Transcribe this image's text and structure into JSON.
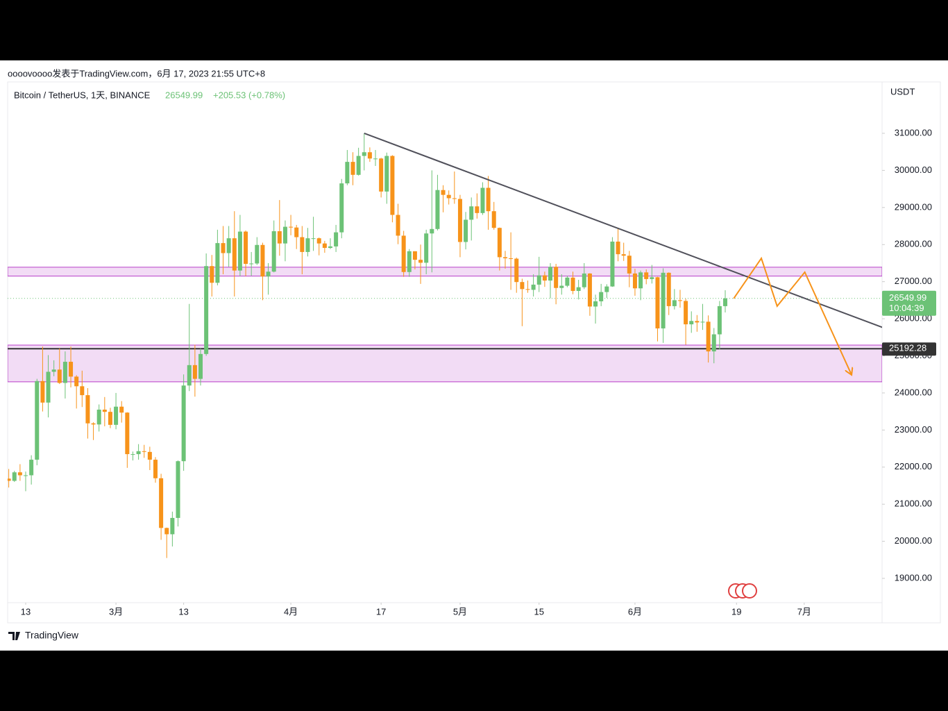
{
  "header": {
    "byline": "oooovoooo发表于TradingView.com，6月 17, 2023 21:55 UTC+8",
    "footer": "TradingView"
  },
  "chart_data": {
    "type": "candlestick",
    "title": "Bitcoin / TetherUS, 1天, BINANCE",
    "change": "+205.53 (+0.78%)",
    "y_axis_label": "USDT",
    "countdown": "10:04:39",
    "up_color": "#6cc276",
    "down_color": "#f7931a",
    "x": [
      -3,
      -2,
      -1,
      0,
      1,
      2,
      3,
      4,
      5,
      6,
      7,
      8,
      9,
      10,
      11,
      12,
      13,
      14,
      15,
      16,
      17,
      18,
      19,
      20,
      21,
      22,
      23,
      24,
      25,
      26,
      27,
      28,
      29,
      30,
      31,
      32,
      33,
      34,
      35,
      36,
      37,
      38,
      39,
      40,
      41,
      42,
      43,
      44,
      45,
      46,
      47,
      48,
      49,
      50,
      51,
      52,
      53,
      54,
      55,
      56,
      57,
      58,
      59,
      60,
      61,
      62,
      63,
      64,
      65,
      66,
      67,
      68,
      69,
      70,
      71,
      72,
      73,
      74,
      75,
      76,
      77,
      78,
      79,
      80,
      81,
      82,
      83,
      84,
      85,
      86,
      87,
      88,
      89,
      90,
      91,
      92,
      93,
      94,
      95,
      96,
      97,
      98,
      99,
      100,
      101,
      102,
      103,
      104,
      105,
      106,
      107,
      108,
      109,
      110,
      111,
      112,
      113,
      114,
      115,
      116,
      117,
      118,
      119,
      120,
      121,
      122,
      123,
      124
    ],
    "open": [
      21690,
      21630,
      21860,
      21780,
      21780,
      22200,
      24320,
      23740,
      24570,
      24630,
      24270,
      24840,
      24440,
      24180,
      23940,
      23180,
      23150,
      23550,
      23490,
      23140,
      23630,
      23470,
      22350,
      22350,
      22430,
      22410,
      22200,
      21700,
      20360,
      20190,
      20630,
      22160,
      24200,
      24750,
      24380,
      25050,
      27420,
      26970,
      28040,
      27770,
      28170,
      27300,
      28350,
      27480,
      27490,
      27990,
      27140,
      27270,
      28360,
      28030,
      28480,
      28460,
      28200,
      27800,
      28170,
      28170,
      28030,
      27910,
      27950,
      28330,
      29650,
      30230,
      29880,
      30390,
      30490,
      30320,
      30320,
      29430,
      30390,
      28800,
      28240,
      27260,
      27820,
      27590,
      27510,
      28300,
      28420,
      29470,
      29340,
      29250,
      29230,
      28070,
      28670,
      29030,
      28850,
      29530,
      28900,
      28450,
      27660,
      27630,
      27620,
      26990,
      26800,
      26780,
      26920,
      27170,
      27030,
      27400,
      26830,
      26890,
      27110,
      26750,
      26850,
      27220,
      26330,
      26470,
      26720,
      26870,
      28080,
      27740,
      27700,
      27220,
      26820,
      27250,
      27070,
      27120,
      25740,
      27240,
      26340,
      26500,
      26480,
      25850,
      25940,
      25900,
      25920,
      25120,
      25580,
      26340
    ],
    "high": [
      21950,
      21900,
      22080,
      21880,
      22320,
      24380,
      25250,
      25020,
      24880,
      25200,
      25120,
      25250,
      24480,
      24600,
      24130,
      23210,
      23690,
      23890,
      23600,
      24000,
      23780,
      23480,
      22420,
      22620,
      22600,
      22550,
      22270,
      21820,
      20370,
      20800,
      22180,
      24500,
      26400,
      25300,
      25200,
      27760,
      27720,
      28400,
      28500,
      28500,
      28900,
      28800,
      28380,
      27800,
      28200,
      28050,
      27500,
      28650,
      29200,
      28650,
      28800,
      28530,
      28500,
      28450,
      28750,
      28190,
      28100,
      28170,
      28530,
      29770,
      30550,
      30490,
      30610,
      31000,
      30620,
      30550,
      30340,
      30480,
      30410,
      29100,
      28370,
      27880,
      27820,
      28000,
      28400,
      30000,
      29880,
      29600,
      29460,
      29970,
      29340,
      28880,
      29270,
      29380,
      29680,
      29850,
      29150,
      28460,
      27830,
      28330,
      27650,
      27080,
      27030,
      27200,
      27670,
      27270,
      27500,
      27480,
      27200,
      27160,
      27270,
      27050,
      27500,
      27230,
      26650,
      26940,
      26930,
      28200,
      28450,
      28050,
      27830,
      27350,
      27300,
      27330,
      27450,
      27130,
      27360,
      27250,
      26800,
      26780,
      26540,
      26200,
      26100,
      26400,
      26090,
      25750,
      26480,
      26770
    ],
    "low": [
      21450,
      21600,
      21630,
      21350,
      21530,
      22050,
      23500,
      23340,
      24450,
      24240,
      23850,
      24150,
      23580,
      23620,
      22770,
      22730,
      22960,
      23100,
      23050,
      23020,
      23200,
      21980,
      22180,
      22200,
      22250,
      21920,
      21580,
      20040,
      19550,
      19860,
      20400,
      21900,
      24050,
      23900,
      24200,
      25000,
      26600,
      26900,
      27200,
      27400,
      26600,
      27150,
      27150,
      27160,
      27450,
      26500,
      26650,
      27250,
      27700,
      27550,
      28250,
      27880,
      27200,
      27680,
      27830,
      27710,
      27780,
      27880,
      27800,
      28170,
      29600,
      29600,
      29860,
      30000,
      30230,
      30120,
      29270,
      29100,
      28600,
      28010,
      27130,
      27130,
      27330,
      26940,
      27200,
      27250,
      28380,
      28870,
      29080,
      29100,
      27660,
      27870,
      28110,
      28700,
      28800,
      28400,
      28400,
      27300,
      27350,
      26780,
      26700,
      25800,
      26700,
      26600,
      26720,
      26860,
      26550,
      26390,
      26650,
      26850,
      26660,
      26520,
      26800,
      26080,
      25870,
      26340,
      26560,
      26860,
      27550,
      27560,
      26850,
      26620,
      26500,
      26930,
      26950,
      25390,
      25350,
      26100,
      26250,
      26300,
      25300,
      25620,
      25650,
      25700,
      24820,
      24800,
      25170,
      26170
    ],
    "close": [
      21630,
      21860,
      21780,
      21780,
      22200,
      24320,
      23740,
      24570,
      24630,
      24270,
      24840,
      24440,
      24180,
      23940,
      23180,
      23150,
      23550,
      23490,
      23140,
      23630,
      23470,
      22350,
      22350,
      22430,
      22410,
      22200,
      21700,
      20360,
      20190,
      20630,
      22160,
      24200,
      24750,
      24380,
      25050,
      27420,
      26970,
      28040,
      27770,
      28170,
      27300,
      28350,
      27480,
      27490,
      27990,
      27140,
      27270,
      28360,
      28030,
      28480,
      28460,
      28200,
      27800,
      28170,
      28170,
      28030,
      27910,
      27950,
      28330,
      29650,
      30230,
      29880,
      30390,
      30490,
      30320,
      30320,
      29430,
      30390,
      28800,
      28240,
      27260,
      27820,
      27590,
      27510,
      28300,
      28420,
      29470,
      29340,
      29250,
      29230,
      28070,
      28670,
      29030,
      28850,
      29530,
      28900,
      28450,
      27660,
      27630,
      27620,
      26990,
      26800,
      26780,
      26920,
      27170,
      27030,
      27400,
      26830,
      26890,
      27110,
      26750,
      26850,
      27220,
      26330,
      26470,
      26720,
      26870,
      28080,
      27740,
      27700,
      27220,
      26820,
      27250,
      27070,
      27120,
      25740,
      27240,
      26340,
      26500,
      26480,
      25850,
      25940,
      25900,
      25920,
      25120,
      25580,
      26340,
      26549.99
    ],
    "xlim": [
      -3.2,
      151.8
    ],
    "xticks": [
      {
        "value": 0,
        "label": "13"
      },
      {
        "value": 16,
        "label": "3月"
      },
      {
        "value": 28,
        "label": "13"
      },
      {
        "value": 47,
        "label": "4月"
      },
      {
        "value": 63,
        "label": "17"
      },
      {
        "value": 77,
        "label": "5月"
      },
      {
        "value": 91,
        "label": "15"
      },
      {
        "value": 108,
        "label": "6月"
      },
      {
        "value": 126,
        "label": "19"
      },
      {
        "value": 138,
        "label": "7月"
      }
    ],
    "ylim": [
      18345,
      32385
    ],
    "yticks": [
      {
        "value": 19000,
        "label": "19000.00"
      },
      {
        "value": 20000,
        "label": "20000.00"
      },
      {
        "value": 21000,
        "label": "21000.00"
      },
      {
        "value": 22000,
        "label": "22000.00"
      },
      {
        "value": 23000,
        "label": "23000.00"
      },
      {
        "value": 24000,
        "label": "24000.00"
      },
      {
        "value": 25000,
        "label": "25000.00"
      },
      {
        "value": 26000,
        "label": "26000.00"
      },
      {
        "value": 27000,
        "label": "27000.00"
      },
      {
        "value": 28000,
        "label": "28000.00"
      },
      {
        "value": 29000,
        "label": "29000.00"
      },
      {
        "value": 30000,
        "label": "30000.00"
      },
      {
        "value": 31000,
        "label": "31000.00"
      }
    ],
    "zones": [
      {
        "y": [
          27150,
          27390
        ],
        "color": "#b83cc9"
      },
      {
        "y": [
          24300,
          25290
        ],
        "color": "#b83cc9"
      }
    ],
    "hline": {
      "value": 25192.28,
      "color": "#333333"
    },
    "trendline": {
      "x": [
        60,
        152
      ],
      "y": [
        31000,
        25760
      ],
      "color": "#50505a"
    },
    "projection": {
      "x": [
        125.5,
        130.4,
        133.2,
        138.1,
        146.4
      ],
      "y": [
        26545,
        27630,
        26340,
        27256,
        24486
      ],
      "color": "#f7931a"
    }
  }
}
